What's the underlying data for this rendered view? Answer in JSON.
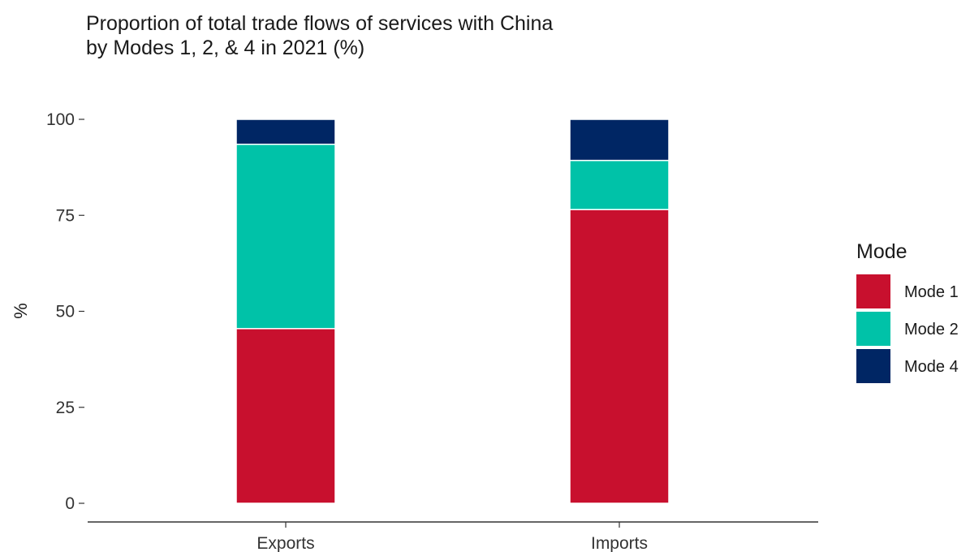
{
  "chart_data": {
    "type": "bar",
    "stacked": true,
    "title_lines": [
      "Proportion of total trade flows of services with China",
      "by Modes 1, 2, & 4 in 2021 (%)"
    ],
    "xlabel": "",
    "ylabel": "%",
    "categories": [
      "Exports",
      "Imports"
    ],
    "series": [
      {
        "name": "Mode 1",
        "color": "#c8102e",
        "values": [
          45.5,
          76.5
        ]
      },
      {
        "name": "Mode 2",
        "color": "#00c2a8",
        "values": [
          48.0,
          12.8
        ]
      },
      {
        "name": "Mode 4",
        "color": "#002664",
        "values": [
          6.5,
          10.7
        ]
      }
    ],
    "ylim": [
      0,
      100
    ],
    "yticks": [
      0,
      25,
      50,
      75,
      100
    ],
    "grid": false,
    "legend": {
      "title": "Mode",
      "position": "right"
    }
  }
}
